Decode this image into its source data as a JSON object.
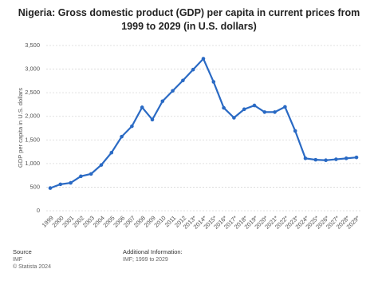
{
  "chart_data": {
    "type": "line",
    "title": "Nigeria: Gross domestic product (GDP) per capita in current prices from 1999 to 2029 (in U.S. dollars)",
    "y_label": "GDP per capita in U.S. dollars",
    "categories": [
      "1999",
      "2000",
      "2001",
      "2002",
      "2003",
      "2004",
      "2005",
      "2006",
      "2007",
      "2008",
      "2009",
      "2010",
      "2011",
      "2012",
      "2013*",
      "2014*",
      "2015*",
      "2016*",
      "2017*",
      "2018*",
      "2019*",
      "2020*",
      "2021*",
      "2022*",
      "2023*",
      "2024*",
      "2025*",
      "2026*",
      "2027*",
      "2028*",
      "2029*"
    ],
    "series": [
      {
        "name": "GDP per capita",
        "color": "#2a6ac4",
        "values": [
          480,
          560,
          590,
          730,
          780,
          970,
          1230,
          1570,
          1790,
          2190,
          1930,
          2320,
          2540,
          2760,
          2990,
          3220,
          2730,
          2180,
          1970,
          2150,
          2230,
          2090,
          2090,
          2200,
          1690,
          1110,
          1080,
          1070,
          1090,
          1110,
          1130
        ]
      }
    ],
    "ylim": [
      0,
      3500
    ],
    "yticks": [
      0,
      500,
      {
        "value": 1000,
        "label": "1,000"
      },
      {
        "value": 1500,
        "label": "1,500"
      },
      {
        "value": 2000,
        "label": "2,000"
      },
      {
        "value": 2500,
        "label": "2,500"
      },
      {
        "value": 3000,
        "label": "3,000"
      },
      {
        "value": 3500,
        "label": "3,500"
      }
    ],
    "grid": true,
    "source": {
      "heading": "Source",
      "text": "IMF",
      "copyright": "© Statista 2024"
    },
    "additional_info": {
      "heading": "Additional Information:",
      "text": "IMF; 1999 to 2029"
    }
  }
}
